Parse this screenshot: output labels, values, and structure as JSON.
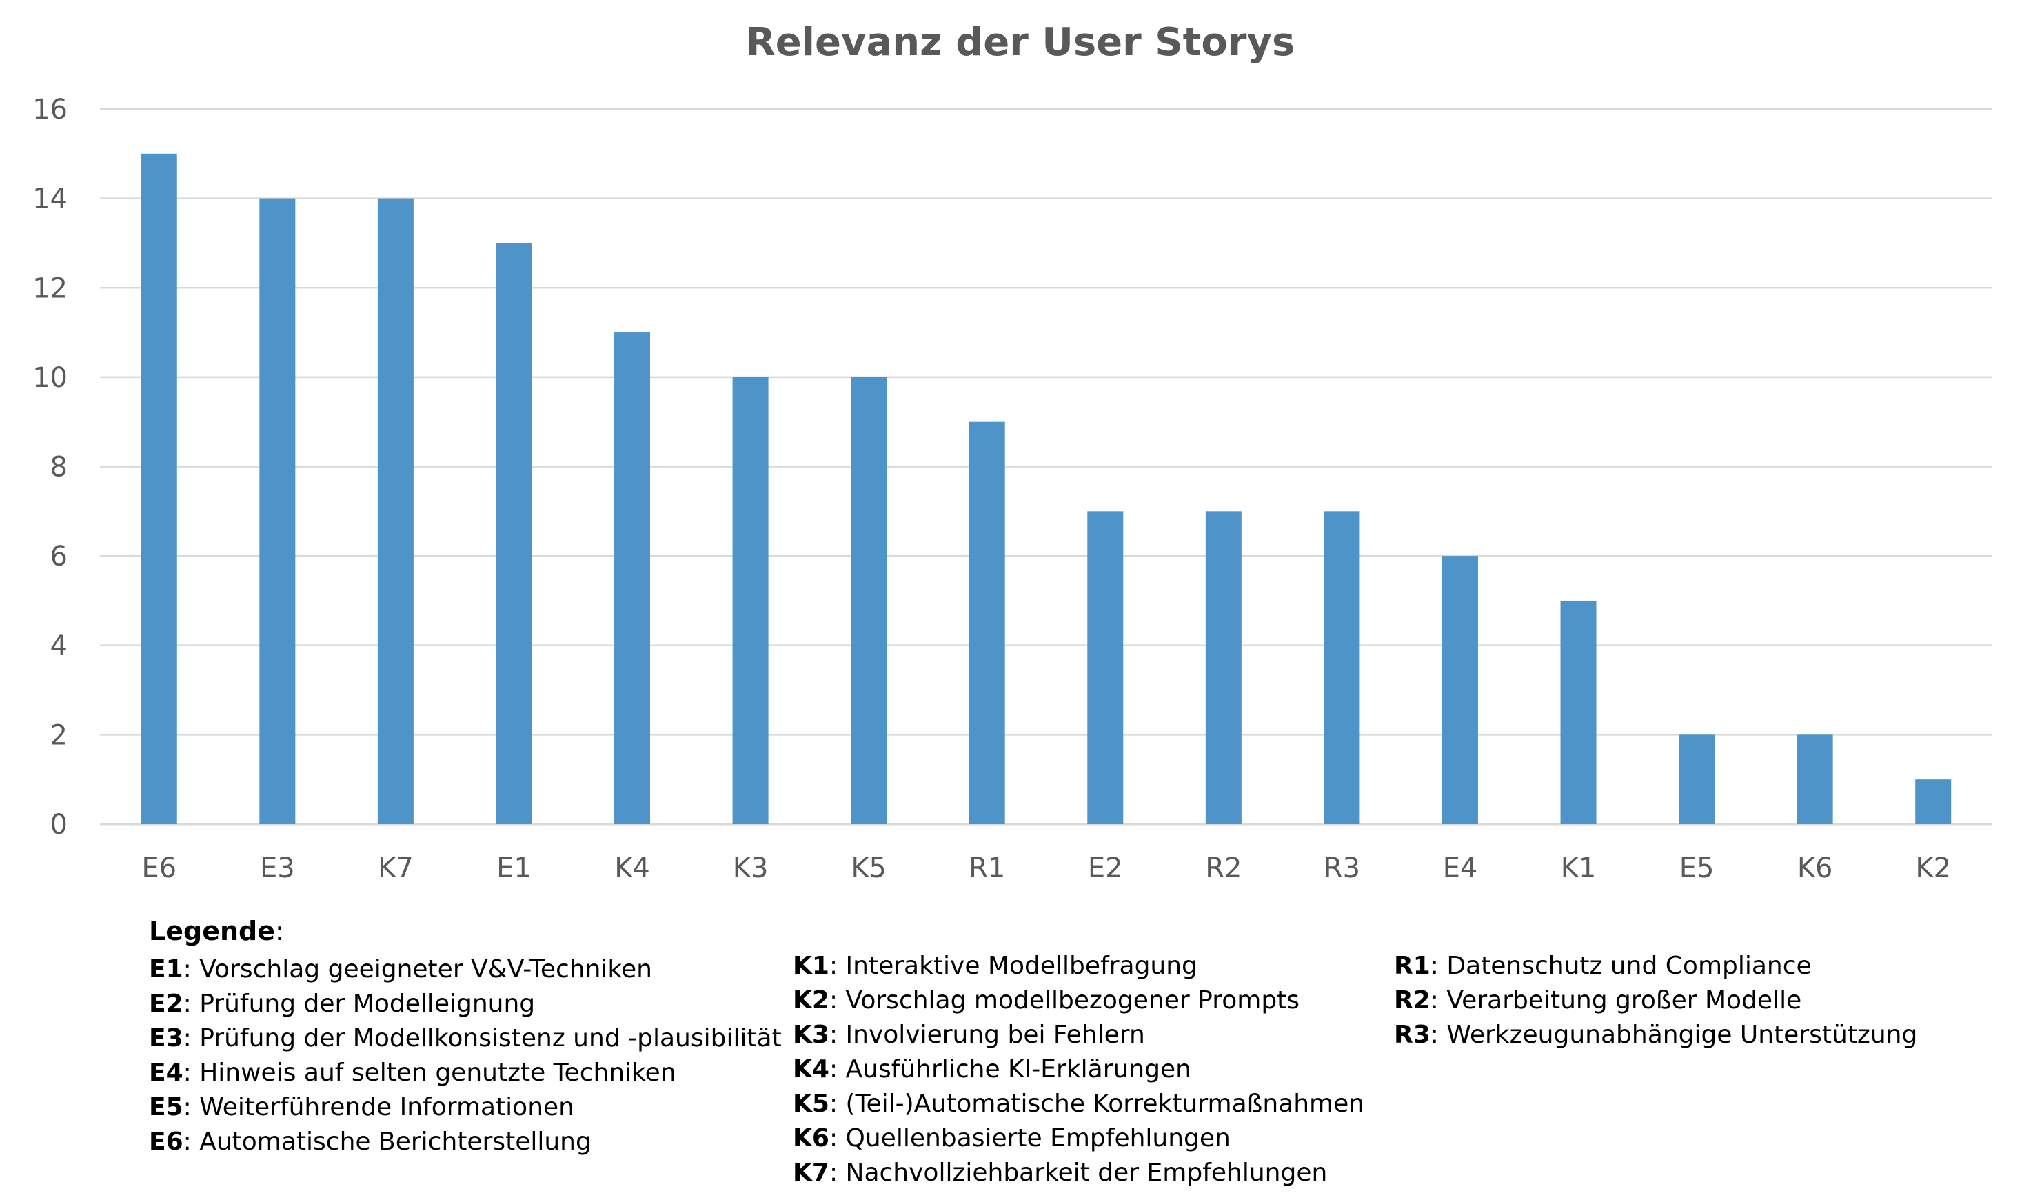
{
  "chart_data": {
    "type": "bar",
    "title": "Relevanz der User Storys",
    "categories": [
      "E6",
      "E3",
      "K7",
      "E1",
      "K4",
      "K3",
      "K5",
      "R1",
      "E2",
      "R2",
      "R3",
      "E4",
      "K1",
      "E5",
      "K6",
      "K2"
    ],
    "values": [
      15,
      14,
      14,
      13,
      11,
      10,
      10,
      9,
      7,
      7,
      7,
      6,
      5,
      2,
      2,
      1
    ],
    "ylim": [
      0,
      16
    ],
    "yticks": [
      0,
      2,
      4,
      6,
      8,
      10,
      12,
      14,
      16
    ],
    "grid": true,
    "bar_color": "#4f94c8",
    "grid_color": "#d9d9d9",
    "legend": {
      "heading": "Legende",
      "columns": [
        [
          {
            "code": "E1",
            "text": "Vorschlag geeigneter V&V-Techniken"
          },
          {
            "code": "E2",
            "text": "Prüfung der Modelleignung"
          },
          {
            "code": "E3",
            "text": "Prüfung der Modellkonsistenz und -plausibilität"
          },
          {
            "code": "E4",
            "text": "Hinweis auf selten genutzte Techniken"
          },
          {
            "code": "E5",
            "text": "Weiterführende Informationen"
          },
          {
            "code": "E6",
            "text": "Automatische Berichterstellung"
          }
        ],
        [
          {
            "code": "K1",
            "text": "Interaktive Modellbefragung"
          },
          {
            "code": "K2",
            "text": "Vorschlag modellbezogener Prompts"
          },
          {
            "code": "K3",
            "text": "Involvierung bei Fehlern"
          },
          {
            "code": "K4",
            "text": "Ausführliche KI-Erklärungen"
          },
          {
            "code": "K5",
            "text": "(Teil-)Automatische Korrekturmaßnahmen"
          },
          {
            "code": "K6",
            "text": "Quellenbasierte Empfehlungen"
          },
          {
            "code": "K7",
            "text": "Nachvollziehbarkeit der Empfehlungen"
          }
        ],
        [
          {
            "code": "R1",
            "text": "Datenschutz und Compliance"
          },
          {
            "code": "R2",
            "text": "Verarbeitung großer Modelle"
          },
          {
            "code": "R3",
            "text": "Werkzeugunabhängige Unterstützung"
          }
        ]
      ]
    }
  }
}
